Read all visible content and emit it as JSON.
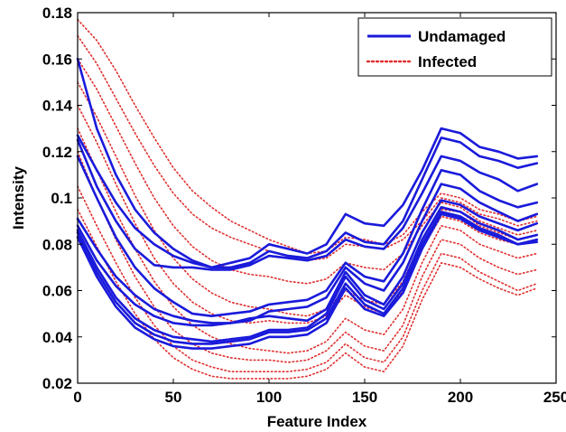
{
  "chart_data": {
    "type": "line",
    "xlabel": "Feature Index",
    "ylabel": "Intensity",
    "xlim": [
      0,
      250
    ],
    "ylim": [
      0.02,
      0.18
    ],
    "xticks": [
      0,
      50,
      100,
      150,
      200,
      250
    ],
    "xtick_labels": [
      "0",
      "50",
      "100",
      "150",
      "200",
      "250"
    ],
    "yticks": [
      0.02,
      0.04,
      0.06,
      0.08,
      0.1,
      0.12,
      0.14,
      0.16,
      0.18
    ],
    "ytick_labels": [
      "0.02",
      "0.04",
      "0.06",
      "0.08",
      "0.1",
      "0.12",
      "0.14",
      "0.16",
      "0.18"
    ],
    "grid": false,
    "legend_position": "top-right",
    "x": [
      0,
      10,
      20,
      30,
      40,
      50,
      60,
      70,
      80,
      90,
      100,
      110,
      120,
      130,
      140,
      150,
      160,
      170,
      180,
      190,
      200,
      210,
      220,
      230,
      240
    ],
    "series": [
      {
        "name": "Undamaged",
        "group": "Undamaged",
        "color": "#1a1adb",
        "style": "solid",
        "values": [
          0.16,
          0.13,
          0.11,
          0.095,
          0.085,
          0.078,
          0.073,
          0.07,
          0.072,
          0.074,
          0.08,
          0.078,
          0.076,
          0.08,
          0.093,
          0.089,
          0.088,
          0.097,
          0.112,
          0.13,
          0.128,
          0.122,
          0.12,
          0.117,
          0.118
        ]
      },
      {
        "name": "",
        "group": "Undamaged",
        "color": "#1a1adb",
        "style": "solid",
        "values": [
          0.127,
          0.112,
          0.098,
          0.087,
          0.08,
          0.075,
          0.072,
          0.07,
          0.07,
          0.072,
          0.077,
          0.075,
          0.074,
          0.077,
          0.085,
          0.081,
          0.08,
          0.09,
          0.108,
          0.126,
          0.124,
          0.118,
          0.116,
          0.113,
          0.115
        ]
      },
      {
        "name": "",
        "group": "Undamaged",
        "color": "#1a1adb",
        "style": "solid",
        "values": [
          0.125,
          0.105,
          0.09,
          0.078,
          0.071,
          0.07,
          0.07,
          0.069,
          0.069,
          0.071,
          0.075,
          0.074,
          0.073,
          0.075,
          0.082,
          0.079,
          0.078,
          0.087,
          0.102,
          0.118,
          0.116,
          0.111,
          0.108,
          0.103,
          0.106
        ]
      },
      {
        "name": "",
        "group": "Undamaged",
        "color": "#1a1adb",
        "style": "solid",
        "values": [
          0.118,
          0.1,
          0.083,
          0.07,
          0.061,
          0.055,
          0.05,
          0.049,
          0.05,
          0.051,
          0.054,
          0.055,
          0.056,
          0.06,
          0.072,
          0.066,
          0.064,
          0.076,
          0.095,
          0.112,
          0.11,
          0.103,
          0.099,
          0.096,
          0.098
        ]
      },
      {
        "name": "",
        "group": "Undamaged",
        "color": "#1a1adb",
        "style": "solid",
        "values": [
          0.091,
          0.078,
          0.066,
          0.058,
          0.052,
          0.049,
          0.047,
          0.046,
          0.046,
          0.047,
          0.051,
          0.052,
          0.053,
          0.057,
          0.07,
          0.063,
          0.06,
          0.072,
          0.09,
          0.106,
          0.104,
          0.098,
          0.094,
          0.09,
          0.093
        ]
      },
      {
        "name": "",
        "group": "Undamaged",
        "color": "#1a1adb",
        "style": "solid",
        "values": [
          0.088,
          0.073,
          0.062,
          0.054,
          0.049,
          0.046,
          0.045,
          0.045,
          0.046,
          0.048,
          0.049,
          0.048,
          0.047,
          0.052,
          0.068,
          0.058,
          0.054,
          0.066,
          0.085,
          0.099,
          0.097,
          0.092,
          0.089,
          0.086,
          0.089
        ]
      },
      {
        "name": "",
        "group": "Undamaged",
        "color": "#1a1adb",
        "style": "solid",
        "values": [
          0.086,
          0.07,
          0.057,
          0.048,
          0.043,
          0.04,
          0.039,
          0.038,
          0.039,
          0.04,
          0.043,
          0.043,
          0.044,
          0.05,
          0.066,
          0.056,
          0.052,
          0.063,
          0.082,
          0.096,
          0.094,
          0.089,
          0.086,
          0.082,
          0.084
        ]
      },
      {
        "name": "",
        "group": "Undamaged",
        "color": "#1a1adb",
        "style": "solid",
        "values": [
          0.085,
          0.068,
          0.055,
          0.046,
          0.041,
          0.038,
          0.037,
          0.037,
          0.038,
          0.039,
          0.042,
          0.042,
          0.043,
          0.048,
          0.063,
          0.054,
          0.05,
          0.061,
          0.08,
          0.094,
          0.092,
          0.087,
          0.084,
          0.08,
          0.082
        ]
      },
      {
        "name": "",
        "group": "Undamaged",
        "color": "#1a1adb",
        "style": "solid",
        "values": [
          0.083,
          0.066,
          0.053,
          0.044,
          0.039,
          0.036,
          0.035,
          0.035,
          0.036,
          0.037,
          0.04,
          0.04,
          0.041,
          0.046,
          0.061,
          0.052,
          0.049,
          0.059,
          0.078,
          0.093,
          0.091,
          0.086,
          0.083,
          0.08,
          0.081
        ]
      },
      {
        "name": "Infected",
        "group": "Infected",
        "color": "#e03030",
        "style": "dotted",
        "values": [
          0.177,
          0.168,
          0.155,
          0.14,
          0.126,
          0.113,
          0.103,
          0.096,
          0.09,
          0.086,
          0.082,
          0.079,
          0.076,
          0.077,
          0.083,
          0.082,
          0.08,
          0.084,
          0.094,
          0.102,
          0.1,
          0.095,
          0.093,
          0.09,
          0.092
        ]
      },
      {
        "name": "",
        "group": "Infected",
        "color": "#e03030",
        "style": "dotted",
        "values": [
          0.17,
          0.158,
          0.143,
          0.128,
          0.114,
          0.102,
          0.093,
          0.087,
          0.083,
          0.08,
          0.077,
          0.075,
          0.073,
          0.074,
          0.08,
          0.079,
          0.078,
          0.082,
          0.09,
          0.1,
          0.098,
          0.093,
          0.091,
          0.088,
          0.09
        ]
      },
      {
        "name": "",
        "group": "Infected",
        "color": "#e03030",
        "style": "dotted",
        "values": [
          0.16,
          0.147,
          0.131,
          0.115,
          0.1,
          0.088,
          0.079,
          0.073,
          0.069,
          0.067,
          0.066,
          0.064,
          0.063,
          0.065,
          0.072,
          0.07,
          0.069,
          0.076,
          0.088,
          0.098,
          0.096,
          0.09,
          0.087,
          0.084,
          0.086
        ]
      },
      {
        "name": "",
        "group": "Infected",
        "color": "#e03030",
        "style": "dotted",
        "values": [
          0.15,
          0.135,
          0.118,
          0.101,
          0.086,
          0.074,
          0.065,
          0.059,
          0.055,
          0.053,
          0.052,
          0.05,
          0.049,
          0.052,
          0.06,
          0.056,
          0.054,
          0.064,
          0.082,
          0.095,
          0.094,
          0.088,
          0.085,
          0.082,
          0.084
        ]
      },
      {
        "name": "",
        "group": "Infected",
        "color": "#e03030",
        "style": "dotted",
        "values": [
          0.14,
          0.124,
          0.106,
          0.089,
          0.074,
          0.063,
          0.055,
          0.05,
          0.047,
          0.046,
          0.047,
          0.046,
          0.046,
          0.049,
          0.058,
          0.053,
          0.05,
          0.06,
          0.078,
          0.092,
          0.09,
          0.085,
          0.082,
          0.08,
          0.082
        ]
      },
      {
        "name": "",
        "group": "Infected",
        "color": "#e03030",
        "style": "dotted",
        "values": [
          0.13,
          0.112,
          0.094,
          0.078,
          0.064,
          0.053,
          0.045,
          0.04,
          0.037,
          0.035,
          0.034,
          0.033,
          0.034,
          0.038,
          0.048,
          0.043,
          0.041,
          0.052,
          0.072,
          0.088,
          0.086,
          0.08,
          0.077,
          0.074,
          0.076
        ]
      },
      {
        "name": "",
        "group": "Infected",
        "color": "#e03030",
        "style": "dotted",
        "values": [
          0.12,
          0.1,
          0.082,
          0.066,
          0.053,
          0.043,
          0.037,
          0.033,
          0.031,
          0.03,
          0.03,
          0.029,
          0.03,
          0.034,
          0.042,
          0.036,
          0.034,
          0.045,
          0.066,
          0.082,
          0.08,
          0.074,
          0.07,
          0.067,
          0.069
        ]
      },
      {
        "name": "",
        "group": "Infected",
        "color": "#e03030",
        "style": "dotted",
        "values": [
          0.105,
          0.088,
          0.072,
          0.057,
          0.045,
          0.036,
          0.03,
          0.027,
          0.025,
          0.025,
          0.025,
          0.025,
          0.026,
          0.029,
          0.037,
          0.031,
          0.029,
          0.04,
          0.06,
          0.076,
          0.074,
          0.068,
          0.064,
          0.06,
          0.063
        ]
      },
      {
        "name": "",
        "group": "Infected",
        "color": "#e03030",
        "style": "dotted",
        "values": [
          0.095,
          0.079,
          0.064,
          0.05,
          0.039,
          0.031,
          0.026,
          0.023,
          0.022,
          0.022,
          0.022,
          0.022,
          0.023,
          0.026,
          0.033,
          0.027,
          0.025,
          0.036,
          0.056,
          0.072,
          0.07,
          0.065,
          0.061,
          0.058,
          0.061
        ]
      }
    ],
    "legend": [
      {
        "label": "Undamaged",
        "color": "#1a1adb",
        "style": "solid"
      },
      {
        "label": "Infected",
        "color": "#e03030",
        "style": "dotted"
      }
    ]
  }
}
